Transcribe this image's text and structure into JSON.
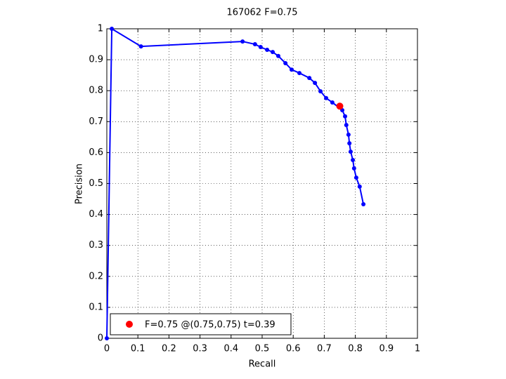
{
  "chart_data": {
    "type": "line",
    "title": "167062 F=0.75",
    "x_label": "Recall",
    "y_label": "Precision",
    "xlim": [
      0,
      1
    ],
    "ylim": [
      0,
      1
    ],
    "xticks": [
      0,
      0.1,
      0.2,
      0.3,
      0.4,
      0.5,
      0.6,
      0.7,
      0.8,
      0.9,
      1
    ],
    "yticks": [
      0,
      0.1,
      0.2,
      0.3,
      0.4,
      0.5,
      0.6,
      0.7,
      0.8,
      0.9,
      1
    ],
    "grid": true,
    "legend": "lower left",
    "series": [
      {
        "color": "#0000ff",
        "marker": "dot",
        "x": [
          0,
          0.016,
          0.11,
          0.437,
          0.477,
          0.495,
          0.516,
          0.534,
          0.552,
          0.575,
          0.595,
          0.62,
          0.652,
          0.67,
          0.688,
          0.706,
          0.726,
          0.758,
          0.767,
          0.771,
          0.778,
          0.781,
          0.785,
          0.792,
          0.796,
          0.803,
          0.814,
          0.826
        ],
        "values": [
          0,
          1.0,
          0.943,
          0.959,
          0.95,
          0.941,
          0.932,
          0.925,
          0.912,
          0.889,
          0.868,
          0.857,
          0.841,
          0.825,
          0.798,
          0.776,
          0.762,
          0.737,
          0.717,
          0.689,
          0.658,
          0.63,
          0.603,
          0.576,
          0.549,
          0.519,
          0.49,
          0.433
        ]
      },
      {
        "name": "F=0.75 @(0.75,0.75) t=0.39",
        "color": "#ff0000",
        "marker": "big-dot",
        "x": [
          0.75
        ],
        "values": [
          0.75
        ]
      }
    ]
  }
}
